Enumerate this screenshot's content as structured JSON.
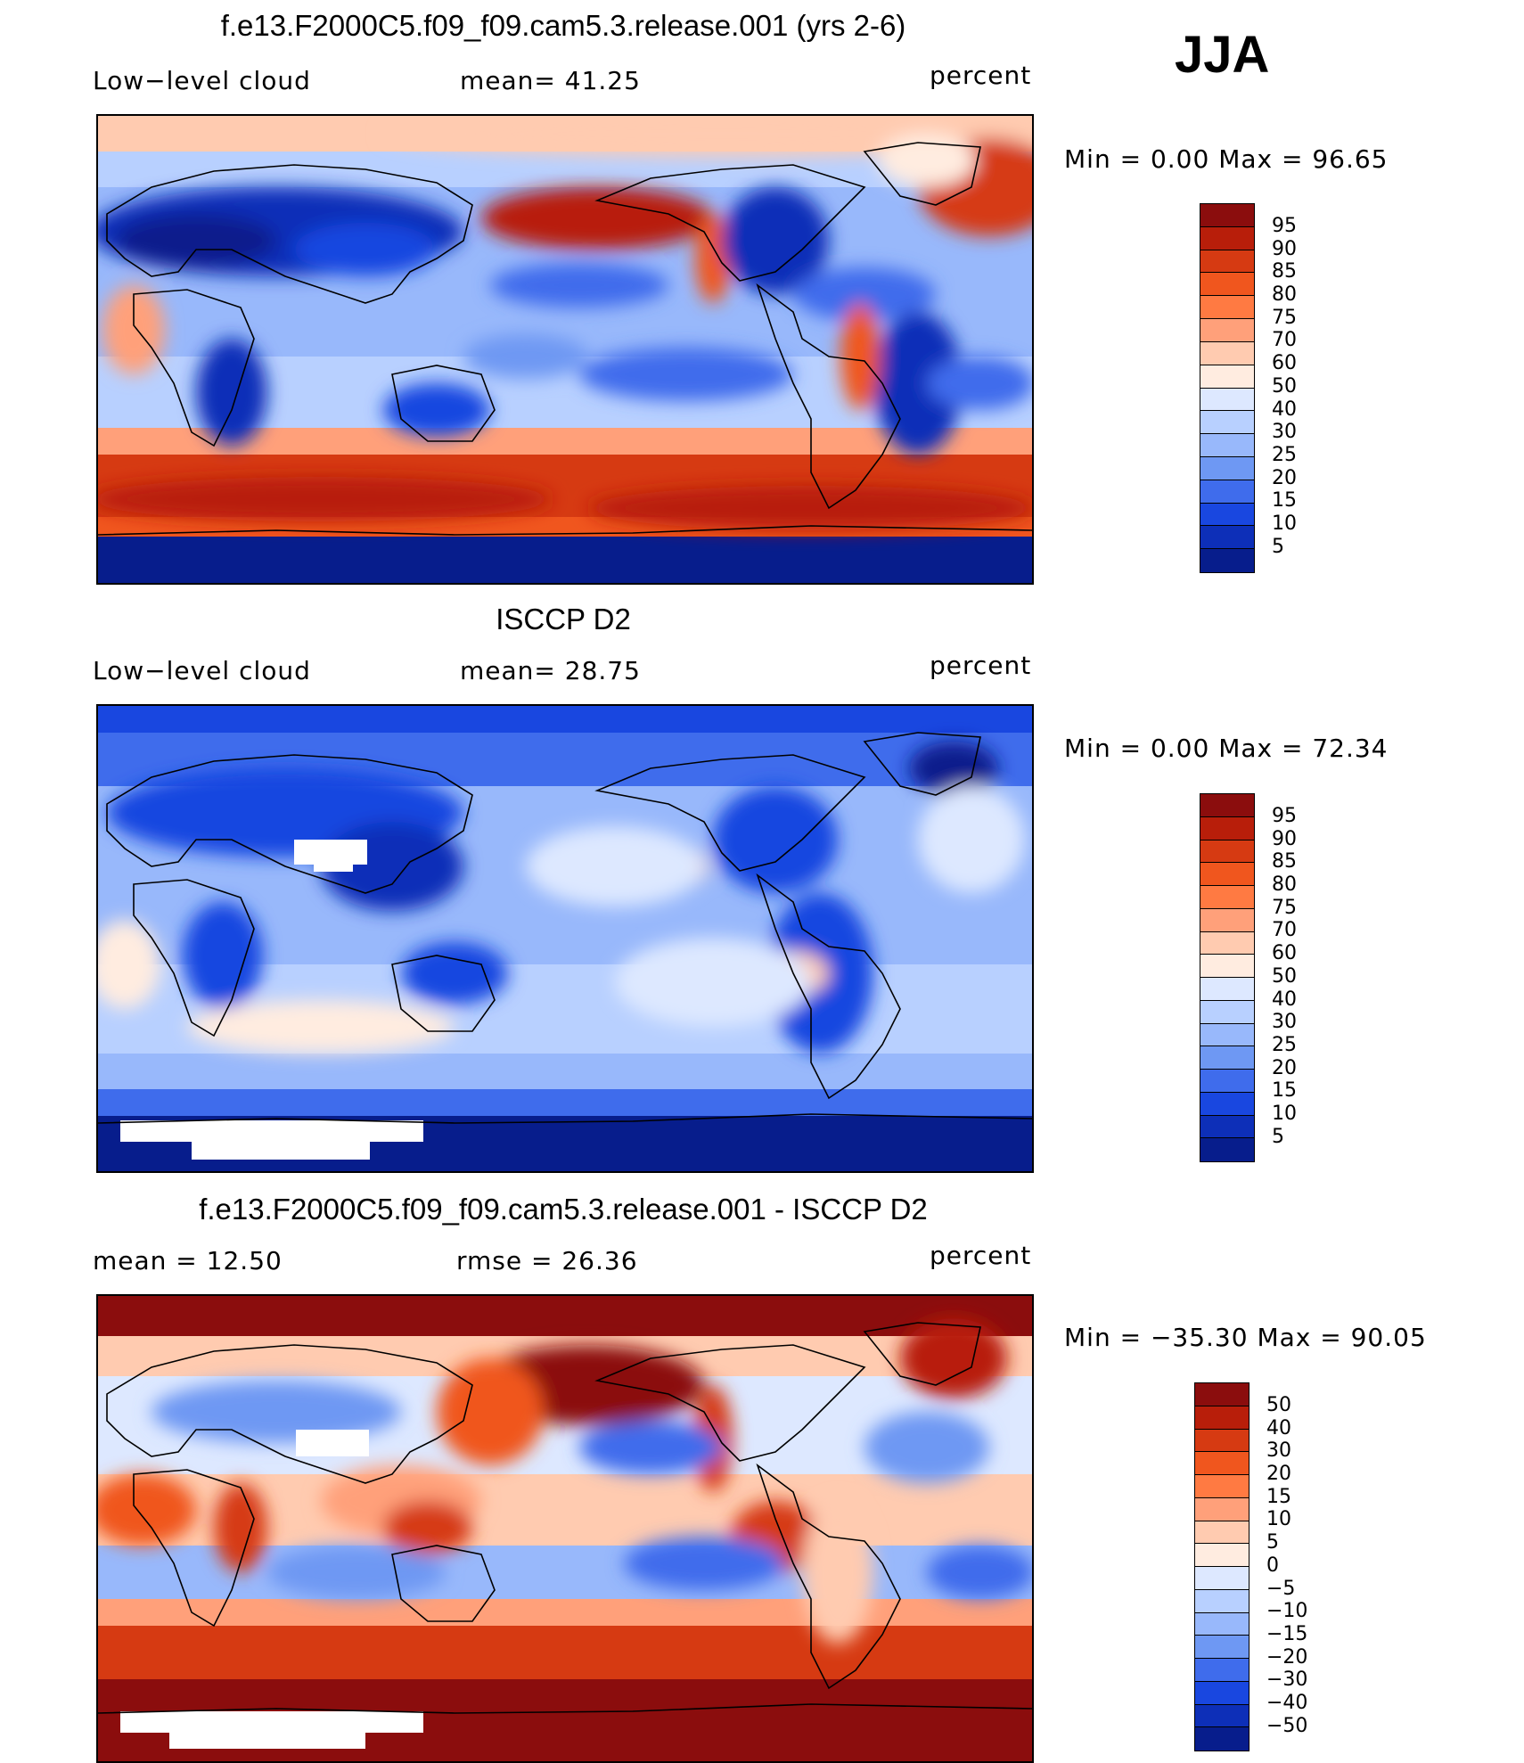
{
  "season": "JJA",
  "panels": [
    {
      "id": "model",
      "title": "f.e13.F2000C5.f09_f09.cam5.3.release.001 (yrs 2-6)",
      "left_label": "Low−level cloud",
      "center_label": "mean=   41.25",
      "units": "percent",
      "minmax": "Min  =     0.00  Max  =    96.65",
      "colorbar": {
        "colors": [
          "#8b0d0d",
          "#b81e0a",
          "#d63a12",
          "#f0561e",
          "#ff7a42",
          "#ffa07a",
          "#ffcbb0",
          "#ffece0",
          "#dde8ff",
          "#b8d0ff",
          "#98b8fb",
          "#6e98f3",
          "#3f6cec",
          "#1947e0",
          "#0d2fb8",
          "#071d8c"
        ],
        "labels": [
          "95",
          "90",
          "85",
          "80",
          "75",
          "70",
          "60",
          "50",
          "40",
          "30",
          "25",
          "20",
          "15",
          "10",
          "5"
        ]
      }
    },
    {
      "id": "obs",
      "title": "ISCCP D2",
      "left_label": "Low−level cloud",
      "center_label": "mean=   28.75",
      "units": "percent",
      "minmax": "Min  =     0.00  Max  =    72.34",
      "colorbar": {
        "colors": [
          "#8b0d0d",
          "#b81e0a",
          "#d63a12",
          "#f0561e",
          "#ff7a42",
          "#ffa07a",
          "#ffcbb0",
          "#ffece0",
          "#dde8ff",
          "#b8d0ff",
          "#98b8fb",
          "#6e98f3",
          "#3f6cec",
          "#1947e0",
          "#0d2fb8",
          "#071d8c"
        ],
        "labels": [
          "95",
          "90",
          "85",
          "80",
          "75",
          "70",
          "60",
          "50",
          "40",
          "30",
          "25",
          "20",
          "15",
          "10",
          "5"
        ]
      }
    },
    {
      "id": "diff",
      "title": "f.e13.F2000C5.f09_f09.cam5.3.release.001 - ISCCP D2",
      "left_label": "mean  =    12.50",
      "center_label": "rmse  =    26.36",
      "units": "percent",
      "minmax": "Min  =  −35.30  Max  =    90.05",
      "colorbar": {
        "colors": [
          "#8b0d0d",
          "#b81e0a",
          "#d63a12",
          "#f0561e",
          "#ff7a42",
          "#ffa07a",
          "#ffcbb0",
          "#ffece0",
          "#dde8ff",
          "#b8d0ff",
          "#98b8fb",
          "#6e98f3",
          "#3f6cec",
          "#1947e0",
          "#0d2fb8",
          "#071d8c"
        ],
        "labels": [
          "50",
          "40",
          "30",
          "20",
          "15",
          "10",
          "5",
          "0",
          "−5",
          "−10",
          "−15",
          "−20",
          "−30",
          "−40",
          "−50"
        ]
      }
    }
  ]
}
